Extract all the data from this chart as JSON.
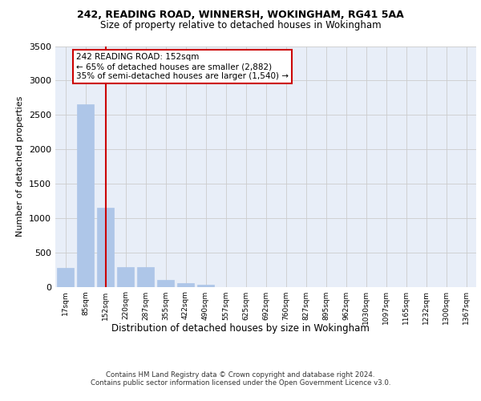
{
  "title_line1": "242, READING ROAD, WINNERSH, WOKINGHAM, RG41 5AA",
  "title_line2": "Size of property relative to detached houses in Wokingham",
  "xlabel": "Distribution of detached houses by size in Wokingham",
  "ylabel": "Number of detached properties",
  "footer_line1": "Contains HM Land Registry data © Crown copyright and database right 2024.",
  "footer_line2": "Contains public sector information licensed under the Open Government Licence v3.0.",
  "bin_labels": [
    "17sqm",
    "85sqm",
    "152sqm",
    "220sqm",
    "287sqm",
    "355sqm",
    "422sqm",
    "490sqm",
    "557sqm",
    "625sqm",
    "692sqm",
    "760sqm",
    "827sqm",
    "895sqm",
    "962sqm",
    "1030sqm",
    "1097sqm",
    "1165sqm",
    "1232sqm",
    "1300sqm",
    "1367sqm"
  ],
  "bar_values": [
    270,
    2650,
    1150,
    285,
    285,
    100,
    55,
    35,
    0,
    0,
    0,
    0,
    0,
    0,
    0,
    0,
    0,
    0,
    0,
    0,
    0
  ],
  "bar_color": "#aec6e8",
  "bar_edgecolor": "#aec6e8",
  "grid_color": "#cccccc",
  "bg_color": "#e8eef8",
  "annotation_text": "242 READING ROAD: 152sqm\n← 65% of detached houses are smaller (2,882)\n35% of semi-detached houses are larger (1,540) →",
  "vline_x_index": 2,
  "vline_color": "#cc0000",
  "annotation_box_edgecolor": "#cc0000",
  "annotation_box_facecolor": "#ffffff",
  "ylim": [
    0,
    3500
  ],
  "yticks": [
    0,
    500,
    1000,
    1500,
    2000,
    2500,
    3000,
    3500
  ]
}
